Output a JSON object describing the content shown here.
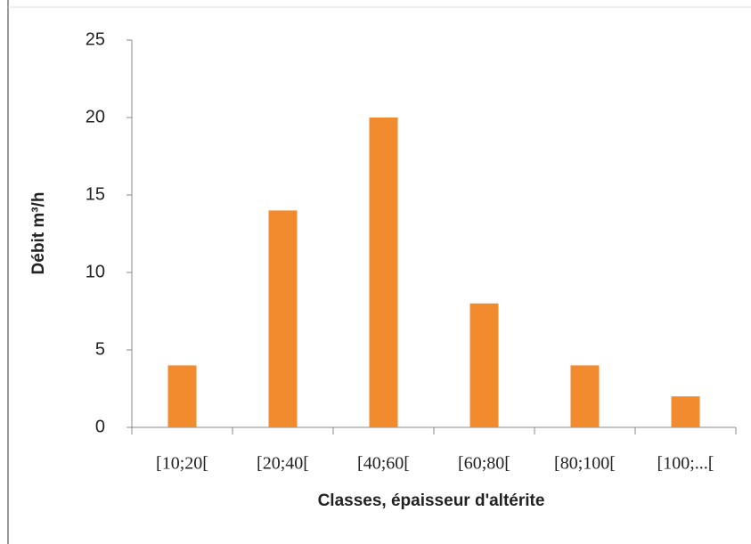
{
  "chart_data": {
    "type": "bar",
    "x_label": "Classes, épaisseur d'altérite",
    "y_label": "Débit m³/h",
    "categories": [
      "[10;20[",
      "[20;40[",
      "[40;60[",
      "[60;80[",
      "[80;100[",
      "[100;...["
    ],
    "values": [
      4,
      14,
      20,
      8,
      4,
      2
    ],
    "color": "#f28a2e",
    "ylim": [
      0,
      25
    ],
    "yticks": [
      0,
      5,
      10,
      15,
      20,
      25
    ],
    "grid": false
  }
}
